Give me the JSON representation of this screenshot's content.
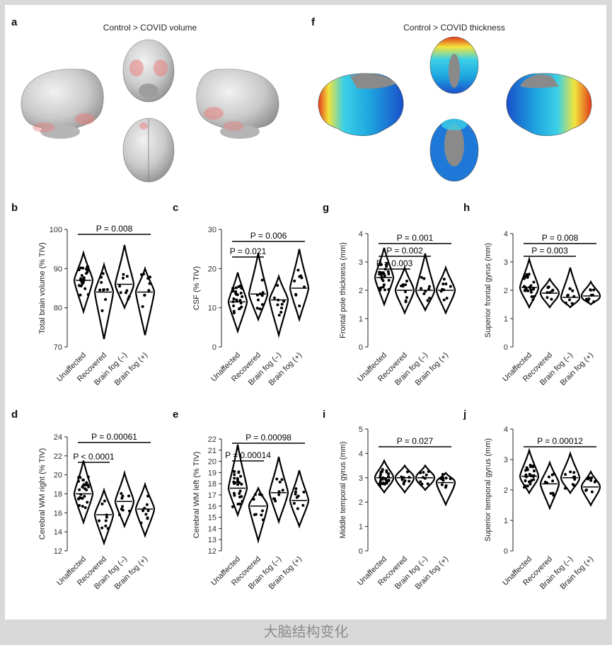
{
  "panel_a": {
    "letter": "a",
    "title": "Control > COVID volume"
  },
  "panel_f": {
    "letter": "f",
    "title": "Control > COVID thickness"
  },
  "caption": "大脑结构变化",
  "colors": {
    "highlight": "#e88080",
    "brain": "#c8c8c8",
    "cold": "#1f6fd6",
    "warm": "#f2e43a",
    "hot": "#e23a1a"
  },
  "chart_data": [
    {
      "id": "b",
      "type": "violin",
      "ylabel": "Total brain volume (% TIV)",
      "ylim": [
        70,
        100
      ],
      "yticks": [
        70,
        80,
        90,
        100
      ],
      "categories": [
        "Unaffected",
        "Recovered",
        "Brain fog (–)",
        "Brain fog (+)"
      ],
      "distributions": [
        {
          "median": 87,
          "min": 79,
          "max": 94
        },
        {
          "median": 84,
          "min": 72,
          "max": 91
        },
        {
          "median": 86,
          "min": 80,
          "max": 96
        },
        {
          "median": 84,
          "min": 73,
          "max": 90
        }
      ],
      "annotations": [
        {
          "text": "P = 0.008",
          "from": 0,
          "to": 3
        }
      ]
    },
    {
      "id": "c",
      "type": "violin",
      "ylabel": "CSF (% TIV)",
      "ylim": [
        0,
        30
      ],
      "yticks": [
        0,
        10,
        20,
        30
      ],
      "categories": [
        "Unaffected",
        "Recovered",
        "Brain fog (–)",
        "Brain fog (+)"
      ],
      "distributions": [
        {
          "median": 11.5,
          "min": 4,
          "max": 19
        },
        {
          "median": 13.5,
          "min": 7,
          "max": 24
        },
        {
          "median": 12,
          "min": 3,
          "max": 18
        },
        {
          "median": 15,
          "min": 7,
          "max": 25
        }
      ],
      "annotations": [
        {
          "text": "P = 0.006",
          "from": 0,
          "to": 3
        },
        {
          "text": "P = 0.021",
          "from": 0,
          "to": 1
        }
      ]
    },
    {
      "id": "g",
      "type": "violin",
      "ylabel": "Frontal pole thickness (mm)",
      "ylim": [
        0,
        4
      ],
      "yticks": [
        0,
        1,
        2,
        3,
        4
      ],
      "categories": [
        "Unaffected",
        "Recovered",
        "Brain fog (–)",
        "Brain fog (+)"
      ],
      "distributions": [
        {
          "median": 2.45,
          "min": 1.5,
          "max": 3.5
        },
        {
          "median": 2.0,
          "min": 1.2,
          "max": 2.8
        },
        {
          "median": 2.0,
          "min": 1.3,
          "max": 3.3
        },
        {
          "median": 2.0,
          "min": 1.2,
          "max": 2.8
        }
      ],
      "annotations": [
        {
          "text": "P = 0.001",
          "from": 0,
          "to": 3
        },
        {
          "text": "P = 0.002",
          "from": 0,
          "to": 2
        },
        {
          "text": "P = 0.003",
          "from": 0,
          "to": 1
        }
      ]
    },
    {
      "id": "h",
      "type": "violin",
      "ylabel": "Superior frontal gyrus (mm)",
      "ylim": [
        0,
        4
      ],
      "yticks": [
        0,
        1,
        2,
        3,
        4
      ],
      "categories": [
        "Unaffected",
        "Recovered",
        "Brain fog (–)",
        "Brain fog (+)"
      ],
      "distributions": [
        {
          "median": 2.1,
          "min": 1.4,
          "max": 3.1
        },
        {
          "median": 1.9,
          "min": 1.4,
          "max": 2.4
        },
        {
          "median": 1.75,
          "min": 1.4,
          "max": 2.8
        },
        {
          "median": 1.8,
          "min": 1.5,
          "max": 2.3
        }
      ],
      "annotations": [
        {
          "text": "P = 0.008",
          "from": 0,
          "to": 3
        },
        {
          "text": "P = 0.003",
          "from": 0,
          "to": 2
        }
      ]
    },
    {
      "id": "d",
      "type": "violin",
      "ylabel": "Cerebral WM right (% TIV)",
      "ylim": [
        12,
        24
      ],
      "yticks": [
        12,
        14,
        16,
        18,
        20,
        22,
        24
      ],
      "categories": [
        "Unaffected",
        "Recovered",
        "Brain fog (–)",
        "Brain fog (+)"
      ],
      "distributions": [
        {
          "median": 18,
          "min": 15,
          "max": 21.5
        },
        {
          "median": 15.8,
          "min": 12.8,
          "max": 18.4
        },
        {
          "median": 17.2,
          "min": 14.6,
          "max": 20.2
        },
        {
          "median": 16.4,
          "min": 13.6,
          "max": 19
        }
      ],
      "annotations": [
        {
          "text": "P = 0.00061",
          "from": 0,
          "to": 3
        },
        {
          "text": "P < 0.0001",
          "from": 0,
          "to": 1
        }
      ]
    },
    {
      "id": "e",
      "type": "violin",
      "ylabel": "Cerebral WM left (% TIV)",
      "ylim": [
        12,
        22
      ],
      "yticks": [
        12,
        13,
        14,
        15,
        16,
        17,
        18,
        19,
        20,
        21,
        22
      ],
      "categories": [
        "Unaffected",
        "Recovered",
        "Brain fog (–)",
        "Brain fog (+)"
      ],
      "distributions": [
        {
          "median": 17.6,
          "min": 15.2,
          "max": 21.5
        },
        {
          "median": 16,
          "min": 12.9,
          "max": 17.6
        },
        {
          "median": 17.2,
          "min": 14.6,
          "max": 20.4
        },
        {
          "median": 16.5,
          "min": 14.2,
          "max": 19.2
        }
      ],
      "annotations": [
        {
          "text": "P = 0.00098",
          "from": 0,
          "to": 3
        },
        {
          "text": "P = 0.00014",
          "from": 0,
          "to": 1
        }
      ]
    },
    {
      "id": "i",
      "type": "violin",
      "ylabel": "Middle temporal gyrus (mm)",
      "ylim": [
        0,
        5
      ],
      "yticks": [
        0,
        1,
        2,
        3,
        4,
        5
      ],
      "categories": [
        "Unaffected",
        "Recovered",
        "Brain fog (–)",
        "Brain fog (+)"
      ],
      "distributions": [
        {
          "median": 3.0,
          "min": 2.4,
          "max": 3.7
        },
        {
          "median": 3.0,
          "min": 2.4,
          "max": 3.5
        },
        {
          "median": 3.0,
          "min": 2.5,
          "max": 3.5
        },
        {
          "median": 2.8,
          "min": 1.9,
          "max": 3.2
        }
      ],
      "annotations": [
        {
          "text": "P = 0.027",
          "from": 0,
          "to": 3
        }
      ]
    },
    {
      "id": "j",
      "type": "violin",
      "ylabel": "Superior temporal gyrus (mm)",
      "ylim": [
        0,
        4
      ],
      "yticks": [
        0,
        1,
        2,
        3,
        4
      ],
      "categories": [
        "Unaffected",
        "Recovered",
        "Brain fog (–)",
        "Brain fog (+)"
      ],
      "distributions": [
        {
          "median": 2.45,
          "min": 1.9,
          "max": 3.3
        },
        {
          "median": 2.2,
          "min": 1.4,
          "max": 2.9
        },
        {
          "median": 2.4,
          "min": 1.9,
          "max": 3.2
        },
        {
          "median": 2.1,
          "min": 1.5,
          "max": 2.6
        }
      ],
      "annotations": [
        {
          "text": "P = 0.00012",
          "from": 0,
          "to": 3
        }
      ]
    }
  ]
}
